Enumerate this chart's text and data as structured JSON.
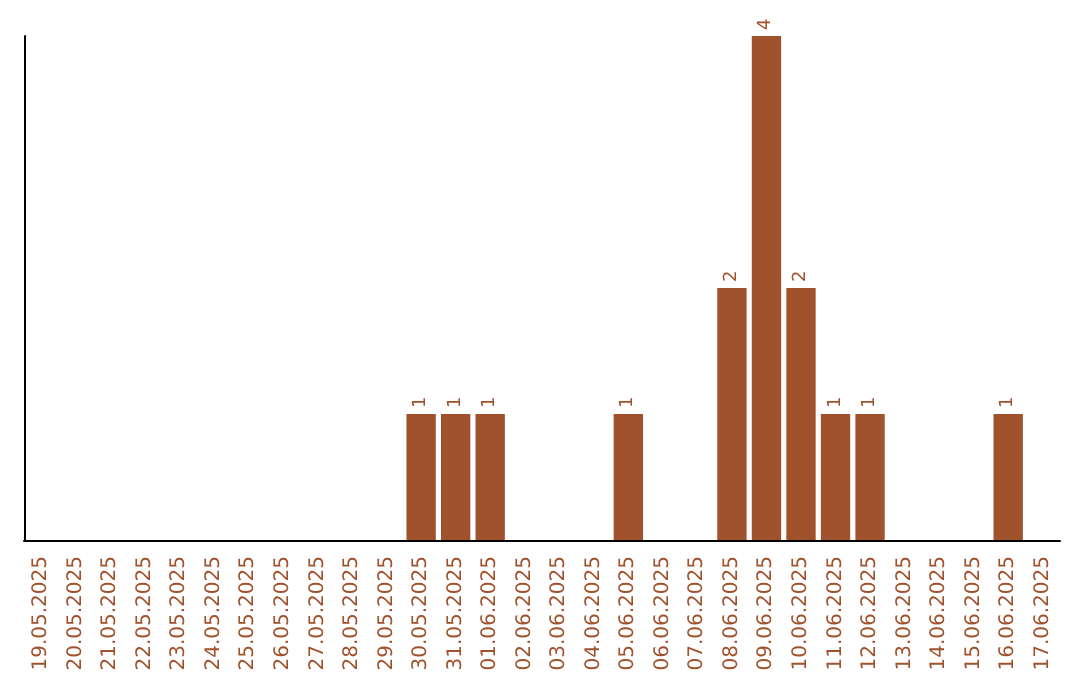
{
  "chart_data": {
    "type": "bar",
    "categories": [
      "19.05.2025",
      "20.05.2025",
      "21.05.2025",
      "22.05.2025",
      "23.05.2025",
      "24.05.2025",
      "25.05.2025",
      "26.05.2025",
      "27.05.2025",
      "28.05.2025",
      "29.05.2025",
      "30.05.2025",
      "31.05.2025",
      "01.06.2025",
      "02.06.2025",
      "03.06.2025",
      "04.06.2025",
      "05.06.2025",
      "06.06.2025",
      "07.06.2025",
      "08.06.2025",
      "09.06.2025",
      "10.06.2025",
      "11.06.2025",
      "12.06.2025",
      "13.06.2025",
      "14.06.2025",
      "15.06.2025",
      "16.06.2025",
      "17.06.2025"
    ],
    "values": [
      0,
      0,
      0,
      0,
      0,
      0,
      0,
      0,
      0,
      0,
      0,
      1,
      1,
      1,
      0,
      0,
      0,
      1,
      0,
      0,
      2,
      4,
      2,
      1,
      1,
      0,
      0,
      0,
      1,
      0
    ],
    "value_labels": [
      null,
      null,
      null,
      null,
      null,
      null,
      null,
      null,
      null,
      null,
      null,
      "1",
      "1",
      "1",
      null,
      null,
      null,
      "1",
      null,
      null,
      "2",
      "4",
      "2",
      "1",
      "1",
      null,
      null,
      null,
      "1",
      null
    ],
    "color": "#a0522d",
    "tick_labels": "x"
  }
}
